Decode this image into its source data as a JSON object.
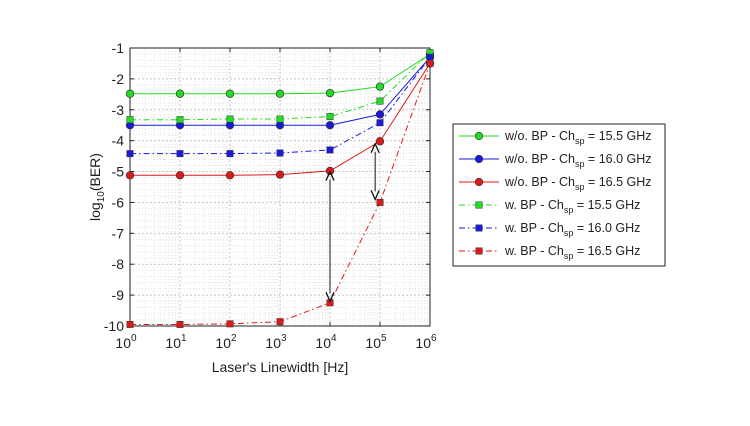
{
  "chart_data": {
    "type": "line",
    "xlabel": "Laser's Linewidth [Hz]",
    "ylabel": "log",
    "ylabel_sub": "10",
    "ylabel_tail": "(BER)",
    "x_scale": "log",
    "xlim": [
      1,
      1000000
    ],
    "ylim": [
      -10,
      -1
    ],
    "grid": true,
    "minor_grid": true,
    "legend_position": "right",
    "x": [
      1,
      10,
      100,
      1000,
      10000,
      100000,
      1000000
    ],
    "x_tick_labels": [
      {
        "base": "10",
        "exp": "0"
      },
      {
        "base": "10",
        "exp": "1"
      },
      {
        "base": "10",
        "exp": "2"
      },
      {
        "base": "10",
        "exp": "3"
      },
      {
        "base": "10",
        "exp": "4"
      },
      {
        "base": "10",
        "exp": "5"
      },
      {
        "base": "10",
        "exp": "6"
      }
    ],
    "y_ticks": [
      "-10",
      "-9",
      "-8",
      "-7",
      "-6",
      "-5",
      "-4",
      "-3",
      "-2",
      "-1"
    ],
    "series": [
      {
        "legend_pre": "w/o. BP - Ch",
        "legend_sub": "sp",
        "legend_post": " = 15.5 GHz",
        "color": "#22dd22",
        "marker": "circle",
        "dash": "solid",
        "values": [
          -2.48,
          -2.48,
          -2.48,
          -2.48,
          -2.46,
          -2.25,
          -1.2
        ]
      },
      {
        "legend_pre": "w/o. BP - Ch",
        "legend_sub": "sp",
        "legend_post": " = 16.0 GHz",
        "color": "#1a1adc",
        "marker": "circle",
        "dash": "solid",
        "values": [
          -3.5,
          -3.5,
          -3.5,
          -3.5,
          -3.5,
          -3.15,
          -1.3
        ]
      },
      {
        "legend_pre": "w/o. BP - Ch",
        "legend_sub": "sp",
        "legend_post": " = 16.5 GHz",
        "color": "#dd1a1a",
        "marker": "circle",
        "dash": "solid",
        "values": [
          -5.12,
          -5.12,
          -5.12,
          -5.1,
          -4.98,
          -4.02,
          -1.5
        ]
      },
      {
        "legend_pre": "w. BP - Ch",
        "legend_sub": "sp",
        "legend_post": " = 15.5 GHz",
        "color": "#22dd22",
        "marker": "square",
        "dash": "dashdot",
        "values": [
          -3.32,
          -3.32,
          -3.3,
          -3.3,
          -3.22,
          -2.72,
          -1.15
        ]
      },
      {
        "legend_pre": "w. BP - Ch",
        "legend_sub": "sp",
        "legend_post": " = 16.0 GHz",
        "color": "#1a1adc",
        "marker": "square",
        "dash": "dashdot",
        "values": [
          -4.42,
          -4.42,
          -4.42,
          -4.4,
          -4.3,
          -3.42,
          -1.3
        ]
      },
      {
        "legend_pre": "w. BP - Ch",
        "legend_sub": "sp",
        "legend_post": " = 16.5 GHz",
        "color": "#dd1a1a",
        "marker": "square",
        "dash": "dashdot",
        "values": [
          -9.95,
          -9.95,
          -9.93,
          -9.86,
          -9.25,
          -6.0,
          -1.5
        ]
      }
    ],
    "annotations": [
      {
        "type": "double-arrow",
        "from": [
          10000,
          -5.0
        ],
        "to": [
          10000,
          -9.2
        ]
      },
      {
        "type": "double-arrow",
        "from": [
          80000,
          -4.1
        ],
        "to": [
          80000,
          -5.9
        ]
      }
    ]
  }
}
